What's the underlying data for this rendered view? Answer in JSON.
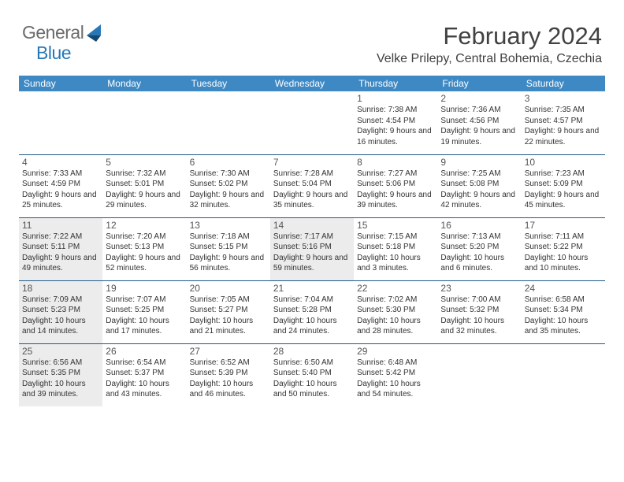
{
  "logo": {
    "text1": "General",
    "text2": "Blue",
    "icon_colors": [
      "#2878b8",
      "#16486f"
    ]
  },
  "title": "February 2024",
  "location": "Velke Prilepy, Central Bohemia, Czechia",
  "colors": {
    "header_bg": "#3e89c4",
    "border": "#1f5a8a",
    "shaded_bg": "#ececec",
    "page_bg": "#ffffff"
  },
  "weekdays": [
    "Sunday",
    "Monday",
    "Tuesday",
    "Wednesday",
    "Thursday",
    "Friday",
    "Saturday"
  ],
  "weeks": [
    [
      null,
      null,
      null,
      null,
      {
        "d": "1",
        "sr": "7:38 AM",
        "ss": "4:54 PM",
        "dl": "9 hours and 16 minutes.",
        "sh": false
      },
      {
        "d": "2",
        "sr": "7:36 AM",
        "ss": "4:56 PM",
        "dl": "9 hours and 19 minutes.",
        "sh": false
      },
      {
        "d": "3",
        "sr": "7:35 AM",
        "ss": "4:57 PM",
        "dl": "9 hours and 22 minutes.",
        "sh": false
      }
    ],
    [
      {
        "d": "4",
        "sr": "7:33 AM",
        "ss": "4:59 PM",
        "dl": "9 hours and 25 minutes.",
        "sh": false
      },
      {
        "d": "5",
        "sr": "7:32 AM",
        "ss": "5:01 PM",
        "dl": "9 hours and 29 minutes.",
        "sh": false
      },
      {
        "d": "6",
        "sr": "7:30 AM",
        "ss": "5:02 PM",
        "dl": "9 hours and 32 minutes.",
        "sh": false
      },
      {
        "d": "7",
        "sr": "7:28 AM",
        "ss": "5:04 PM",
        "dl": "9 hours and 35 minutes.",
        "sh": false
      },
      {
        "d": "8",
        "sr": "7:27 AM",
        "ss": "5:06 PM",
        "dl": "9 hours and 39 minutes.",
        "sh": false
      },
      {
        "d": "9",
        "sr": "7:25 AM",
        "ss": "5:08 PM",
        "dl": "9 hours and 42 minutes.",
        "sh": false
      },
      {
        "d": "10",
        "sr": "7:23 AM",
        "ss": "5:09 PM",
        "dl": "9 hours and 45 minutes.",
        "sh": false
      }
    ],
    [
      {
        "d": "11",
        "sr": "7:22 AM",
        "ss": "5:11 PM",
        "dl": "9 hours and 49 minutes.",
        "sh": true
      },
      {
        "d": "12",
        "sr": "7:20 AM",
        "ss": "5:13 PM",
        "dl": "9 hours and 52 minutes.",
        "sh": false
      },
      {
        "d": "13",
        "sr": "7:18 AM",
        "ss": "5:15 PM",
        "dl": "9 hours and 56 minutes.",
        "sh": false
      },
      {
        "d": "14",
        "sr": "7:17 AM",
        "ss": "5:16 PM",
        "dl": "9 hours and 59 minutes.",
        "sh": true
      },
      {
        "d": "15",
        "sr": "7:15 AM",
        "ss": "5:18 PM",
        "dl": "10 hours and 3 minutes.",
        "sh": false
      },
      {
        "d": "16",
        "sr": "7:13 AM",
        "ss": "5:20 PM",
        "dl": "10 hours and 6 minutes.",
        "sh": false
      },
      {
        "d": "17",
        "sr": "7:11 AM",
        "ss": "5:22 PM",
        "dl": "10 hours and 10 minutes.",
        "sh": false
      }
    ],
    [
      {
        "d": "18",
        "sr": "7:09 AM",
        "ss": "5:23 PM",
        "dl": "10 hours and 14 minutes.",
        "sh": true
      },
      {
        "d": "19",
        "sr": "7:07 AM",
        "ss": "5:25 PM",
        "dl": "10 hours and 17 minutes.",
        "sh": false
      },
      {
        "d": "20",
        "sr": "7:05 AM",
        "ss": "5:27 PM",
        "dl": "10 hours and 21 minutes.",
        "sh": false
      },
      {
        "d": "21",
        "sr": "7:04 AM",
        "ss": "5:28 PM",
        "dl": "10 hours and 24 minutes.",
        "sh": false
      },
      {
        "d": "22",
        "sr": "7:02 AM",
        "ss": "5:30 PM",
        "dl": "10 hours and 28 minutes.",
        "sh": false
      },
      {
        "d": "23",
        "sr": "7:00 AM",
        "ss": "5:32 PM",
        "dl": "10 hours and 32 minutes.",
        "sh": false
      },
      {
        "d": "24",
        "sr": "6:58 AM",
        "ss": "5:34 PM",
        "dl": "10 hours and 35 minutes.",
        "sh": false
      }
    ],
    [
      {
        "d": "25",
        "sr": "6:56 AM",
        "ss": "5:35 PM",
        "dl": "10 hours and 39 minutes.",
        "sh": true
      },
      {
        "d": "26",
        "sr": "6:54 AM",
        "ss": "5:37 PM",
        "dl": "10 hours and 43 minutes.",
        "sh": false
      },
      {
        "d": "27",
        "sr": "6:52 AM",
        "ss": "5:39 PM",
        "dl": "10 hours and 46 minutes.",
        "sh": false
      },
      {
        "d": "28",
        "sr": "6:50 AM",
        "ss": "5:40 PM",
        "dl": "10 hours and 50 minutes.",
        "sh": false
      },
      {
        "d": "29",
        "sr": "6:48 AM",
        "ss": "5:42 PM",
        "dl": "10 hours and 54 minutes.",
        "sh": false
      },
      null,
      null
    ]
  ],
  "labels": {
    "sunrise": "Sunrise:",
    "sunset": "Sunset:",
    "daylight": "Daylight:"
  }
}
